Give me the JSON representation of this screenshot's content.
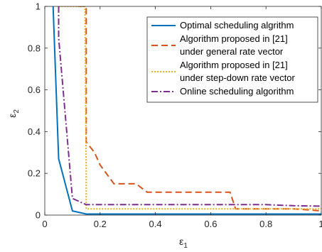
{
  "chart_data": {
    "type": "line",
    "xlabel": "ε",
    "xlabel_sub": "1",
    "ylabel": "ε",
    "ylabel_sub": "2",
    "xlim": [
      0,
      1
    ],
    "ylim": [
      0,
      1
    ],
    "xticks": [
      0,
      0.2,
      0.4,
      0.6,
      0.8,
      1
    ],
    "xtick_labels": [
      "0",
      "0.2",
      "0.4",
      "0.6",
      "0.8",
      "1"
    ],
    "yticks": [
      0,
      0.2,
      0.4,
      0.6,
      0.8,
      1
    ],
    "ytick_labels": [
      "0",
      "0.2",
      "0.4",
      "0.6",
      "0.8",
      "1"
    ],
    "grid": false,
    "legend_position": "top-right",
    "series": [
      {
        "name": "Optimal scheduling algrithm",
        "color": "#0072BD",
        "dash": "solid",
        "x": [
          0.03,
          0.05,
          0.1,
          0.15,
          0.2,
          0.3,
          0.5,
          0.7,
          0.9,
          1.0
        ],
        "y": [
          1.0,
          0.27,
          0.02,
          0.005,
          0.005,
          0.005,
          0.005,
          0.005,
          0.005,
          0.005
        ]
      },
      {
        "name": "Algorithm proposed in [21]\nunder general rate vector",
        "color": "#D95319",
        "dash": "dashed",
        "x": [
          0.12,
          0.15,
          0.15,
          0.18,
          0.2,
          0.25,
          0.33,
          0.37,
          0.55,
          0.67,
          0.69,
          0.8,
          0.9,
          1.0
        ],
        "y": [
          1.0,
          1.0,
          0.35,
          0.3,
          0.24,
          0.15,
          0.15,
          0.11,
          0.11,
          0.11,
          0.03,
          0.03,
          0.03,
          0.02
        ]
      },
      {
        "name": "Algorithm proposed in [21]\nunder step-down rate vector",
        "color": "#EDB120",
        "dash": "dotted",
        "x": [
          0.05,
          0.145,
          0.15,
          0.15,
          0.3,
          0.5,
          0.7,
          0.9,
          1.0
        ],
        "y": [
          1.0,
          1.0,
          0.2,
          0.03,
          0.03,
          0.03,
          0.03,
          0.03,
          0.03
        ]
      },
      {
        "name": "Online scheduling algorithm",
        "color": "#7E2F8E",
        "dash": "dashdot",
        "x": [
          0.05,
          0.05,
          0.1,
          0.15,
          0.3,
          0.5,
          0.7,
          0.8,
          0.9,
          1.0
        ],
        "y": [
          1.0,
          0.85,
          0.08,
          0.05,
          0.05,
          0.05,
          0.05,
          0.05,
          0.045,
          0.043
        ]
      }
    ]
  }
}
